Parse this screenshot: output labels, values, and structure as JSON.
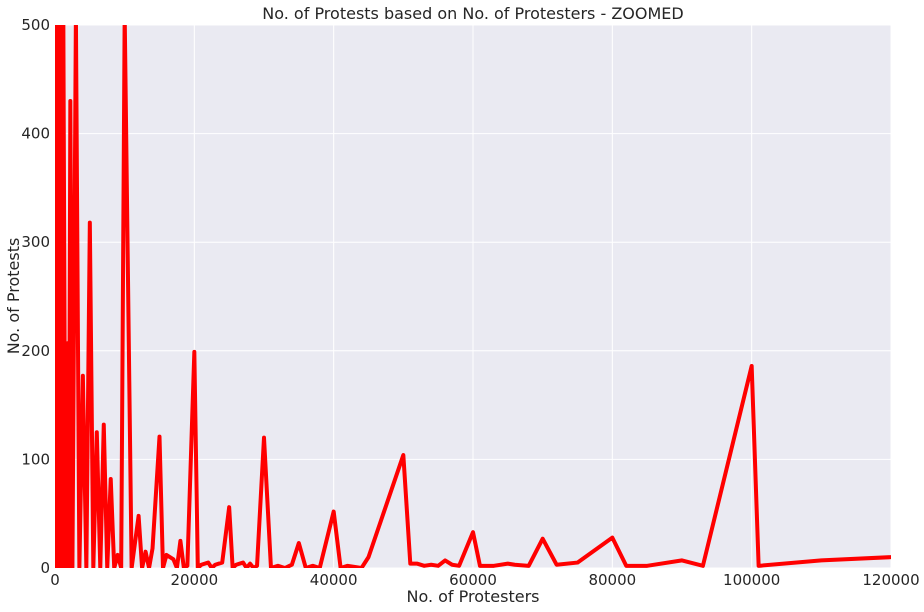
{
  "chart_data": {
    "type": "line",
    "title": "No. of Protests based on No. of Protesters - ZOOMED",
    "xlabel": "No. of Protesters",
    "ylabel": "No. of Protests",
    "xlim": [
      0,
      120000
    ],
    "ylim": [
      0,
      500
    ],
    "xticks": [
      0,
      20000,
      40000,
      60000,
      80000,
      100000,
      120000
    ],
    "yticks": [
      0,
      100,
      200,
      300,
      400,
      500
    ],
    "grid": true,
    "style": "seaborn-darkgrid",
    "colors": {
      "line": "#ff0000",
      "plot_background": "#eaeaf2",
      "grid": "#ffffff"
    },
    "series": [
      {
        "x": [
          0,
          100,
          200,
          300,
          400,
          500,
          600,
          700,
          800,
          900,
          1000,
          1200,
          1500,
          1800,
          2000,
          2200,
          2500,
          3000,
          3500,
          4000,
          4500,
          5000,
          5500,
          6000,
          6500,
          7000,
          7500,
          8000,
          8500,
          9000,
          9500,
          10000,
          11000,
          12000,
          12500,
          13000,
          13500,
          14000,
          15000,
          15500,
          16000,
          17000,
          17500,
          18000,
          18500,
          19000,
          20000,
          20500,
          21000,
          22000,
          22500,
          23000,
          24000,
          25000,
          25500,
          26000,
          27000,
          27500,
          28000,
          28500,
          29000,
          30000,
          31000,
          32000,
          33000,
          34000,
          35000,
          36000,
          37000,
          38000,
          40000,
          41000,
          42000,
          44000,
          45000,
          50000,
          51000,
          52000,
          53000,
          54000,
          55000,
          56000,
          57000,
          58000,
          60000,
          61000,
          62000,
          63000,
          65000,
          66000,
          68000,
          70000,
          72000,
          75000,
          80000,
          82000,
          85000,
          90000,
          93000,
          100000,
          101000,
          110000,
          120000
        ],
        "y": [
          0,
          550,
          0,
          520,
          0,
          560,
          0,
          540,
          0,
          530,
          0,
          500,
          0,
          207,
          0,
          430,
          0,
          510,
          0,
          177,
          0,
          318,
          0,
          125,
          0,
          132,
          0,
          82,
          0,
          12,
          0,
          510,
          0,
          48,
          0,
          15,
          0,
          18,
          121,
          0,
          12,
          8,
          0,
          25,
          0,
          2,
          199,
          0,
          3,
          5,
          0,
          3,
          5,
          56,
          0,
          3,
          5,
          0,
          4,
          0,
          2,
          120,
          0,
          2,
          0,
          3,
          23,
          0,
          2,
          0,
          52,
          0,
          2,
          0,
          10,
          104,
          4,
          4,
          2,
          3,
          2,
          7,
          3,
          2,
          33,
          2,
          2,
          2,
          4,
          3,
          2,
          27,
          3,
          5,
          28,
          2,
          2,
          7,
          2,
          186,
          2,
          7,
          10
        ]
      }
    ]
  }
}
